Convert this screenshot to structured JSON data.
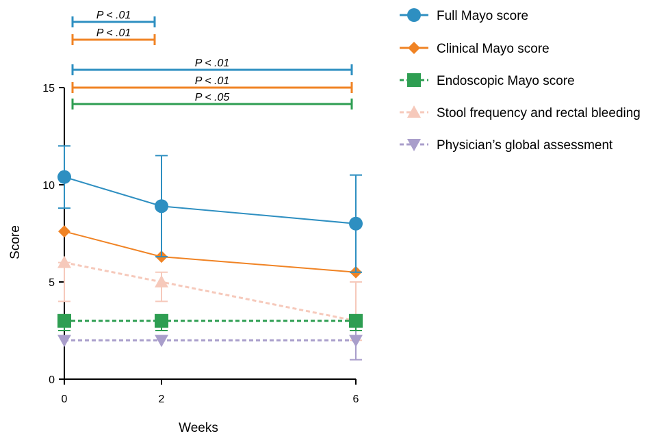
{
  "chart_data": {
    "type": "line",
    "xlabel": "Weeks",
    "ylabel": "Score",
    "x": [
      0,
      2,
      6
    ],
    "x_ticks": [
      "0",
      "2",
      "6"
    ],
    "xlim": [
      0,
      6
    ],
    "ylim": [
      0,
      15
    ],
    "y_ticks": [
      "0",
      "5",
      "10",
      "15"
    ],
    "grid": false,
    "legend_position": "right",
    "series": [
      {
        "name": "Full Mayo score",
        "color": "#2e8fc1",
        "marker": "circle",
        "line_style": "solid",
        "values": [
          10.4,
          8.9,
          8.0
        ],
        "error_upper": [
          12.0,
          11.5,
          10.5
        ],
        "error_lower": [
          8.8,
          6.3,
          5.5
        ]
      },
      {
        "name": "Clinical Mayo score",
        "color": "#f08324",
        "marker": "diamond",
        "line_style": "solid",
        "values": [
          7.6,
          6.3,
          5.5
        ],
        "error_upper": null,
        "error_lower": null
      },
      {
        "name": "Endoscopic Mayo score",
        "color": "#2e9e52",
        "marker": "square",
        "line_style": "dashed",
        "values": [
          3.0,
          3.0,
          3.0
        ],
        "error_upper": [
          3.0,
          3.0,
          3.0
        ],
        "error_lower": [
          2.5,
          2.5,
          2.5
        ]
      },
      {
        "name": "Stool frequency and rectal bleeding",
        "color": "#f6c9bb",
        "marker": "triangle-up",
        "line_style": "dashed",
        "values": [
          6.0,
          5.0,
          3.0
        ],
        "error_upper": [
          6.0,
          5.5,
          5.0
        ],
        "error_lower": [
          4.0,
          4.0,
          2.0
        ]
      },
      {
        "name": "Physician’s global assessment",
        "color": "#a99ecb",
        "marker": "triangle-down",
        "line_style": "dashed",
        "values": [
          2.0,
          2.0,
          2.0
        ],
        "error_upper": [
          2.0,
          2.0,
          3.0
        ],
        "error_lower": [
          2.0,
          2.0,
          1.0
        ]
      }
    ],
    "significance_brackets": [
      {
        "label": "P < .01",
        "from": 0,
        "to": 2,
        "color": "#2e8fc1"
      },
      {
        "label": "P < .01",
        "from": 0,
        "to": 2,
        "color": "#f08324"
      },
      {
        "label": "P < .01",
        "from": 0,
        "to": 6,
        "color": "#2e8fc1"
      },
      {
        "label": "P < .01",
        "from": 0,
        "to": 6,
        "color": "#f08324"
      },
      {
        "label": "P < .05",
        "from": 0,
        "to": 6,
        "color": "#2e9e52"
      }
    ]
  }
}
